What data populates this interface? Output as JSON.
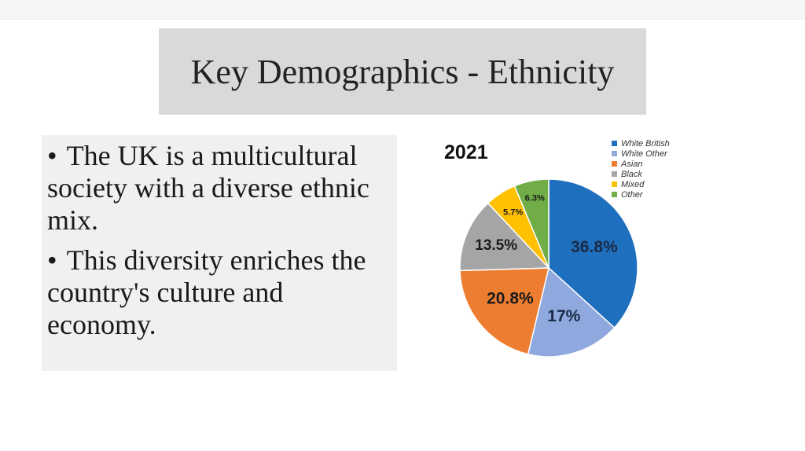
{
  "slide": {
    "title": "Key Demographics - Ethnicity",
    "bullets": [
      "The UK is a multicultural society with a diverse ethnic mix.",
      "This diversity enriches the country's culture and economy."
    ],
    "bullet_glyph": "•"
  },
  "chart_data": {
    "type": "pie",
    "title": "2021",
    "legend_position": "top-right",
    "slices": [
      {
        "label": "White British",
        "value": 36.8,
        "display": "36.8%",
        "color": "#1f6fbf"
      },
      {
        "label": "White Other",
        "value": 17,
        "display": "17%",
        "color": "#8fa9df"
      },
      {
        "label": "Asian",
        "value": 20.8,
        "display": "20.8%",
        "color": "#ed7d31"
      },
      {
        "label": "Black",
        "value": 13.5,
        "display": "13.5%",
        "color": "#a5a5a5"
      },
      {
        "label": "Mixed",
        "value": 5.7,
        "display": "5.7%",
        "color": "#ffc000"
      },
      {
        "label": "Other",
        "value": 6.3,
        "display": "6.3%",
        "color": "#70ad47"
      }
    ]
  }
}
